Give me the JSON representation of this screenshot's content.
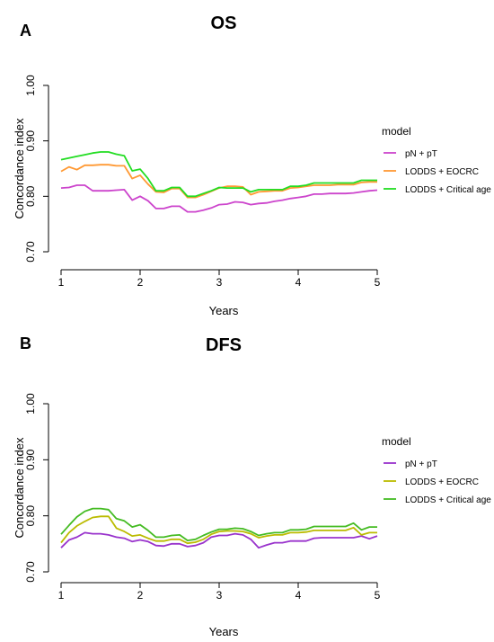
{
  "chart_data": [
    {
      "panel": "A",
      "type": "line",
      "title": "OS",
      "xlabel": "Years",
      "ylabel": "Concordance index",
      "xlim": [
        1,
        5
      ],
      "ylim": [
        0.7,
        1.0
      ],
      "xticks": [
        "1",
        "2",
        "3",
        "4",
        "5"
      ],
      "yticks": [
        "0.70",
        "0.80",
        "0.90",
        "1.00"
      ],
      "grid": false,
      "legend_title": "model",
      "legend_position": "right",
      "x": [
        1.0,
        1.1,
        1.2,
        1.3,
        1.4,
        1.5,
        1.6,
        1.7,
        1.8,
        1.9,
        2.0,
        2.1,
        2.2,
        2.3,
        2.4,
        2.5,
        2.6,
        2.7,
        2.8,
        2.9,
        3.0,
        3.1,
        3.2,
        3.3,
        3.4,
        3.5,
        3.6,
        3.7,
        3.8,
        3.9,
        4.0,
        4.1,
        4.2,
        4.3,
        4.4,
        4.5,
        4.6,
        4.7,
        4.8,
        4.9,
        5.0
      ],
      "series": [
        {
          "name": "pN + pT",
          "color": "#cc44cc",
          "values": [
            0.815,
            0.816,
            0.82,
            0.82,
            0.81,
            0.81,
            0.81,
            0.811,
            0.812,
            0.793,
            0.8,
            0.792,
            0.778,
            0.778,
            0.782,
            0.782,
            0.772,
            0.772,
            0.775,
            0.779,
            0.785,
            0.786,
            0.79,
            0.789,
            0.785,
            0.787,
            0.788,
            0.791,
            0.793,
            0.796,
            0.798,
            0.8,
            0.804,
            0.804,
            0.805,
            0.805,
            0.805,
            0.806,
            0.808,
            0.81,
            0.811
          ]
        },
        {
          "name": "LODDS + EOCRC",
          "color": "#ff9933",
          "values": [
            0.845,
            0.853,
            0.848,
            0.856,
            0.856,
            0.857,
            0.857,
            0.855,
            0.855,
            0.832,
            0.838,
            0.822,
            0.808,
            0.807,
            0.814,
            0.814,
            0.798,
            0.798,
            0.803,
            0.809,
            0.815,
            0.818,
            0.818,
            0.817,
            0.803,
            0.808,
            0.809,
            0.81,
            0.81,
            0.815,
            0.816,
            0.818,
            0.82,
            0.82,
            0.82,
            0.821,
            0.821,
            0.821,
            0.825,
            0.826,
            0.826
          ]
        },
        {
          "name": "LODDS + Critical age",
          "color": "#22dd22",
          "values": [
            0.866,
            0.869,
            0.872,
            0.875,
            0.878,
            0.88,
            0.88,
            0.876,
            0.873,
            0.846,
            0.849,
            0.832,
            0.81,
            0.81,
            0.816,
            0.816,
            0.8,
            0.8,
            0.805,
            0.81,
            0.816,
            0.815,
            0.815,
            0.815,
            0.808,
            0.812,
            0.812,
            0.812,
            0.812,
            0.818,
            0.818,
            0.82,
            0.824,
            0.824,
            0.824,
            0.824,
            0.824,
            0.824,
            0.829,
            0.829,
            0.829
          ]
        }
      ]
    },
    {
      "panel": "B",
      "type": "line",
      "title": "DFS",
      "xlabel": "Years",
      "ylabel": "Concordance index",
      "xlim": [
        1,
        5
      ],
      "ylim": [
        0.7,
        1.0
      ],
      "xticks": [
        "1",
        "2",
        "3",
        "4",
        "5"
      ],
      "yticks": [
        "0.70",
        "0.80",
        "0.90",
        "1.00"
      ],
      "grid": false,
      "legend_title": "model",
      "legend_position": "right",
      "x": [
        1.0,
        1.1,
        1.2,
        1.3,
        1.4,
        1.5,
        1.6,
        1.7,
        1.8,
        1.9,
        2.0,
        2.1,
        2.2,
        2.3,
        2.4,
        2.5,
        2.6,
        2.7,
        2.8,
        2.9,
        3.0,
        3.1,
        3.2,
        3.3,
        3.4,
        3.5,
        3.6,
        3.7,
        3.8,
        3.9,
        4.0,
        4.1,
        4.2,
        4.3,
        4.4,
        4.5,
        4.6,
        4.7,
        4.8,
        4.9,
        5.0
      ],
      "series": [
        {
          "name": "pN + pT",
          "color": "#9933cc",
          "values": [
            0.743,
            0.757,
            0.762,
            0.77,
            0.768,
            0.768,
            0.766,
            0.762,
            0.76,
            0.754,
            0.757,
            0.754,
            0.747,
            0.746,
            0.75,
            0.75,
            0.745,
            0.747,
            0.752,
            0.762,
            0.765,
            0.765,
            0.768,
            0.766,
            0.758,
            0.743,
            0.748,
            0.752,
            0.752,
            0.755,
            0.755,
            0.755,
            0.76,
            0.761,
            0.761,
            0.761,
            0.761,
            0.761,
            0.764,
            0.759,
            0.764
          ]
        },
        {
          "name": "LODDS + EOCRC",
          "color": "#bbbb00",
          "values": [
            0.752,
            0.77,
            0.782,
            0.79,
            0.797,
            0.799,
            0.799,
            0.778,
            0.772,
            0.764,
            0.766,
            0.76,
            0.755,
            0.755,
            0.758,
            0.758,
            0.751,
            0.753,
            0.758,
            0.767,
            0.772,
            0.773,
            0.773,
            0.772,
            0.768,
            0.761,
            0.764,
            0.766,
            0.766,
            0.77,
            0.77,
            0.771,
            0.774,
            0.774,
            0.774,
            0.774,
            0.774,
            0.779,
            0.766,
            0.77,
            0.77
          ]
        },
        {
          "name": "LODDS + Critical age",
          "color": "#44bb22",
          "values": [
            0.767,
            0.783,
            0.798,
            0.808,
            0.813,
            0.813,
            0.811,
            0.795,
            0.791,
            0.78,
            0.784,
            0.774,
            0.762,
            0.762,
            0.765,
            0.766,
            0.756,
            0.758,
            0.765,
            0.771,
            0.776,
            0.776,
            0.778,
            0.777,
            0.772,
            0.765,
            0.768,
            0.77,
            0.77,
            0.775,
            0.775,
            0.776,
            0.781,
            0.781,
            0.781,
            0.781,
            0.781,
            0.787,
            0.775,
            0.78,
            0.78
          ]
        }
      ]
    }
  ]
}
